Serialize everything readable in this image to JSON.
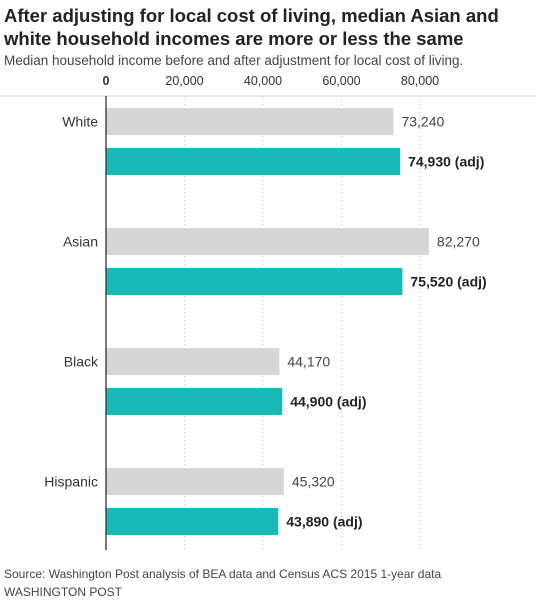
{
  "header": {
    "title": "After adjusting for local cost of living, median Asian and white household incomes are more or less the same",
    "subtitle": "Median household income before and after adjustment for local cost of living."
  },
  "footer": {
    "source": "Source: Washington Post analysis of BEA data and Census ACS 2015 1-year data",
    "credit": "WASHINGTON POST"
  },
  "colors": {
    "before": "#d6d6d6",
    "after": "#1bb8b8",
    "grid": "#c8c8c8",
    "axis": "#222222"
  },
  "chart_data": {
    "type": "bar",
    "orientation": "horizontal",
    "xlim": [
      0,
      80000
    ],
    "xticks": [
      0,
      20000,
      40000,
      60000,
      80000
    ],
    "xtick_labels": [
      "0",
      "20,000",
      "40,000",
      "60,000",
      "80,000"
    ],
    "grid": true,
    "categories": [
      "White",
      "Asian",
      "Black",
      "Hispanic"
    ],
    "series": [
      {
        "key": "before",
        "values": [
          73240,
          82270,
          44170,
          45320
        ],
        "labels": [
          "73,240",
          "82,270",
          "44,170",
          "45,320"
        ]
      },
      {
        "key": "after",
        "values": [
          74930,
          75520,
          44900,
          43890
        ],
        "labels": [
          "74,930 (adj)",
          "75,520 (adj)",
          "44,900 (adj)",
          "43,890 (adj)"
        ]
      }
    ]
  }
}
